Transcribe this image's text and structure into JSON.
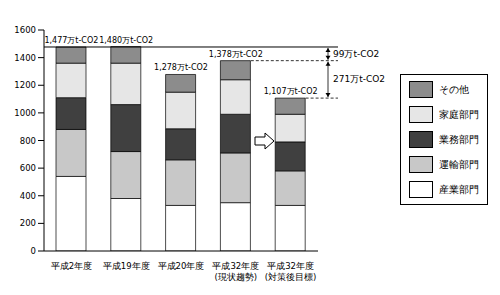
{
  "chart_data": {
    "type": "bar",
    "stacked": true,
    "categories": [
      "平成2年度",
      "平成19年度",
      "平成20年度",
      "平成32年度\n(現状趨勢)",
      "平成32年度\n(対策後目標)"
    ],
    "series": [
      {
        "name": "産業部門",
        "color": "#ffffff",
        "values": [
          540,
          380,
          330,
          350,
          330
        ]
      },
      {
        "name": "運輸部門",
        "color": "#c8c8c8",
        "values": [
          340,
          340,
          330,
          360,
          250
        ]
      },
      {
        "name": "業務部門",
        "color": "#404040",
        "values": [
          230,
          340,
          225,
          280,
          210
        ]
      },
      {
        "name": "家庭部門",
        "color": "#e6e6e6",
        "values": [
          250,
          300,
          265,
          250,
          200
        ]
      },
      {
        "name": "その他",
        "color": "#8c8c8c",
        "values": [
          117,
          120,
          128,
          138,
          117
        ]
      }
    ],
    "totals": [
      1477,
      1480,
      1278,
      1378,
      1107
    ],
    "total_labels": [
      "1,477万t-CO2",
      "1,480万t-CO2",
      "1,278万t-CO2",
      "1,378万t-CO2",
      "1,107万t-CO2"
    ],
    "annotations": [
      {
        "text": "99万t-CO2",
        "from": 1378,
        "to": 1477
      },
      {
        "text": "271万t-CO2",
        "from": 1107,
        "to": 1378
      }
    ],
    "ylim": [
      0,
      1600
    ],
    "yticks": [
      0,
      200,
      400,
      600,
      800,
      1000,
      1200,
      1400,
      1600
    ],
    "grid": false,
    "legend": "right"
  }
}
